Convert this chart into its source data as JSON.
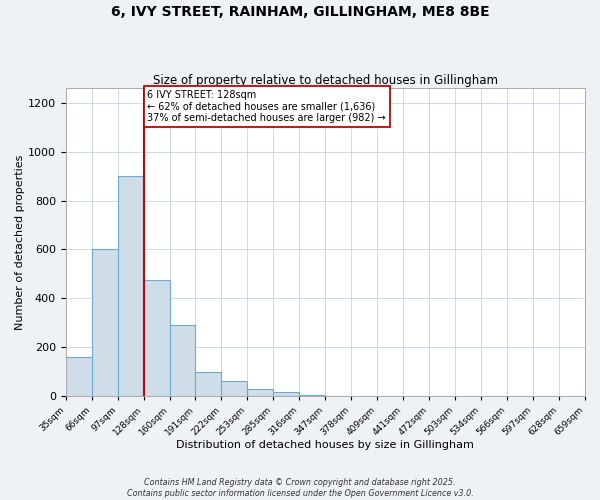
{
  "title": "6, IVY STREET, RAINHAM, GILLINGHAM, ME8 8BE",
  "subtitle": "Size of property relative to detached houses in Gillingham",
  "xlabel": "Distribution of detached houses by size in Gillingham",
  "ylabel": "Number of detached properties",
  "bin_labels": [
    "35sqm",
    "66sqm",
    "97sqm",
    "128sqm",
    "160sqm",
    "191sqm",
    "222sqm",
    "253sqm",
    "285sqm",
    "316sqm",
    "347sqm",
    "378sqm",
    "409sqm",
    "441sqm",
    "472sqm",
    "503sqm",
    "534sqm",
    "566sqm",
    "597sqm",
    "628sqm",
    "659sqm"
  ],
  "bar_values": [
    160,
    600,
    900,
    475,
    293,
    100,
    62,
    28,
    15,
    5,
    0,
    0,
    0,
    0,
    0,
    0,
    0,
    0,
    0,
    0
  ],
  "bar_color": "#cfdde8",
  "bar_edge_color": "#6aaad4",
  "vline_x_bar": 3,
  "vline_color": "#cc0000",
  "ylim": [
    0,
    1260
  ],
  "yticks": [
    0,
    200,
    400,
    600,
    800,
    1000,
    1200
  ],
  "annotation_title": "6 IVY STREET: 128sqm",
  "annotation_line1": "← 62% of detached houses are smaller (1,636)",
  "annotation_line2": "37% of semi-detached houses are larger (982) →",
  "annotation_box_color": "#ffffff",
  "annotation_box_edge": "#cc0000",
  "footer_line1": "Contains HM Land Registry data © Crown copyright and database right 2025.",
  "footer_line2": "Contains public sector information licensed under the Open Government Licence v3.0.",
  "bg_color": "#eef2f7",
  "plot_bg_color": "#ffffff",
  "grid_color": "#c5d5e5"
}
